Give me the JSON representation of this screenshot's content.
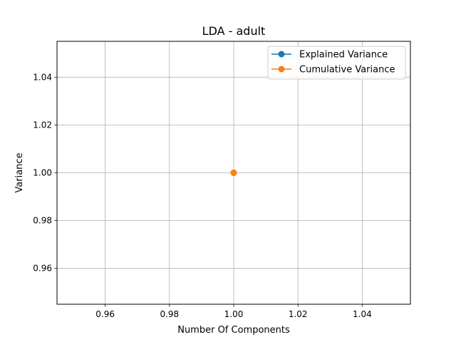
{
  "chart_data": {
    "type": "line",
    "title": "LDA - adult",
    "xlabel": "Number Of Components",
    "ylabel": "Variance",
    "xlim": [
      0.945,
      1.055
    ],
    "ylim": [
      0.945,
      1.055
    ],
    "x_ticks": [
      {
        "value": 0.96,
        "label": "0.96"
      },
      {
        "value": 0.98,
        "label": "0.98"
      },
      {
        "value": 1.0,
        "label": "1.00"
      },
      {
        "value": 1.02,
        "label": "1.02"
      },
      {
        "value": 1.04,
        "label": "1.04"
      }
    ],
    "y_ticks": [
      {
        "value": 0.96,
        "label": "0.96"
      },
      {
        "value": 0.98,
        "label": "0.98"
      },
      {
        "value": 1.0,
        "label": "1.00"
      },
      {
        "value": 1.02,
        "label": "1.02"
      },
      {
        "value": 1.04,
        "label": "1.04"
      }
    ],
    "grid": true,
    "legend_position": "top-right",
    "series": [
      {
        "name": "Explained Variance",
        "color": "#1f77b4",
        "marker": "circle",
        "x": [
          1
        ],
        "y": [
          1.0
        ]
      },
      {
        "name": "Cumulative Variance",
        "color": "#ff7f0e",
        "marker": "circle",
        "x": [
          1
        ],
        "y": [
          1.0
        ]
      }
    ]
  }
}
